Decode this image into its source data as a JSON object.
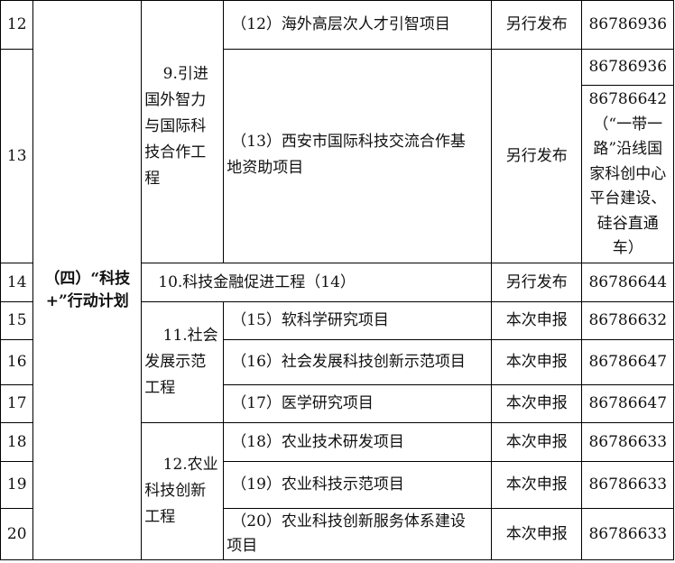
{
  "rows": [
    {
      "no": "12",
      "project": "（12）海外高层次人才引智项目",
      "mode": "另行发布",
      "phone": "86786936"
    },
    {
      "no": "13",
      "project_lines": [
        "（13）西安市国际科技交流合作基",
        "地资助项目"
      ],
      "mode": "另行发布",
      "phone": "86786936",
      "phone2_lines": [
        "86786642",
        "（“一带一",
        "路”沿线国",
        "家科创中心",
        "平台建设、",
        "硅谷直通",
        "车）"
      ]
    },
    {
      "no": "14",
      "project": "10.科技金融促进工程（14）",
      "mode": "另行发布",
      "phone": "86786644"
    },
    {
      "no": "15",
      "project": "（15）软科学研究项目",
      "mode": "本次申报",
      "phone": "86786632"
    },
    {
      "no": "16",
      "project": "（16）社会发展科技创新示范项目",
      "mode": "本次申报",
      "phone": "86786647"
    },
    {
      "no": "17",
      "project": "（17）医学研究项目",
      "mode": "本次申报",
      "phone": "86786647"
    },
    {
      "no": "18",
      "project": "（18）农业技术研发项目",
      "mode": "本次申报",
      "phone": "86786633"
    },
    {
      "no": "19",
      "project": "（19）农业科技示范项目",
      "mode": "本次申报",
      "phone": "86786633"
    },
    {
      "no": "20",
      "project_lines": [
        "（20）农业科技创新服务体系建设",
        "项目"
      ],
      "mode": "本次申报",
      "phone": "86786633"
    }
  ],
  "category_lines": [
    "（四）“科技",
    "+”行动计划"
  ],
  "groups": {
    "g9": [
      "9.引进",
      "国外智力",
      "与国际科",
      "技合作工",
      "程"
    ],
    "g11": [
      "11.社会",
      "发展示范",
      "工程"
    ],
    "g12": [
      "12.农业",
      "科技创新",
      "工程"
    ]
  }
}
